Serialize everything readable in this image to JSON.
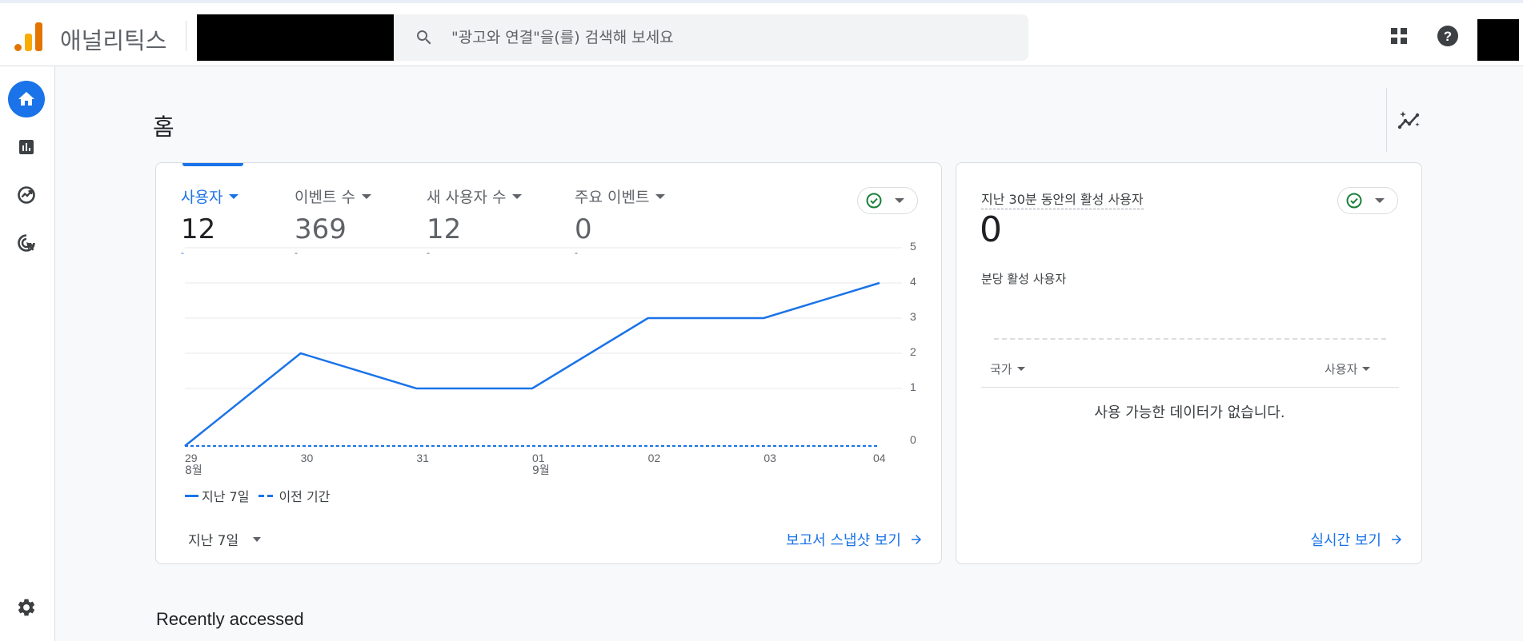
{
  "app": {
    "product_name": "애널리틱스"
  },
  "search": {
    "placeholder": "\"광고와 연결\"을(를) 검색해 보세요"
  },
  "sidebar": {
    "items": [
      "home-icon",
      "reports-icon",
      "explore-icon",
      "advertising-icon",
      "settings-icon"
    ]
  },
  "page": {
    "title": "홈",
    "recent_title": "Recently accessed"
  },
  "metrics": [
    {
      "label": "사용자",
      "value": "12",
      "delta": "-"
    },
    {
      "label": "이벤트 수",
      "value": "369",
      "delta": "-"
    },
    {
      "label": "새 사용자 수",
      "value": "12",
      "delta": "-"
    },
    {
      "label": "주요 이벤트",
      "value": "0",
      "delta": "-"
    }
  ],
  "chart_data": {
    "type": "line",
    "x": [
      "29",
      "30",
      "31",
      "01",
      "02",
      "03",
      "04"
    ],
    "x_sublabels": [
      "8월",
      "",
      "",
      "9월",
      "",
      "",
      ""
    ],
    "series": [
      {
        "name": "지난 7일",
        "values": [
          0,
          2,
          1,
          1,
          3,
          3,
          4
        ],
        "style": "solid",
        "color": "#1a73e8"
      },
      {
        "name": "이전 기간",
        "values": [
          0,
          0,
          0,
          0,
          0,
          0,
          0
        ],
        "style": "dashed",
        "color": "#1a73e8"
      }
    ],
    "y_ticks": [
      "0",
      "1",
      "2",
      "3",
      "4",
      "5"
    ],
    "ylim": [
      0,
      5
    ],
    "grid": true,
    "legend": "bottom-left"
  },
  "legend": {
    "current": "지난 7일",
    "previous": "이전 기간"
  },
  "main_card": {
    "range_label": "지난 7일",
    "link_label": "보고서 스냅샷 보기"
  },
  "realtime": {
    "title": "지난 30분 동안의 활성 사용자",
    "value": "0",
    "subtitle": "분당 활성 사용자",
    "col_country": "국가",
    "col_users": "사용자",
    "empty_message": "사용 가능한 데이터가 없습니다.",
    "link_label": "실시간 보기"
  },
  "colors": {
    "accent": "#1a73e8",
    "logo_orange": "#e37400",
    "logo_yellow": "#f9ab00",
    "success": "#188038"
  }
}
